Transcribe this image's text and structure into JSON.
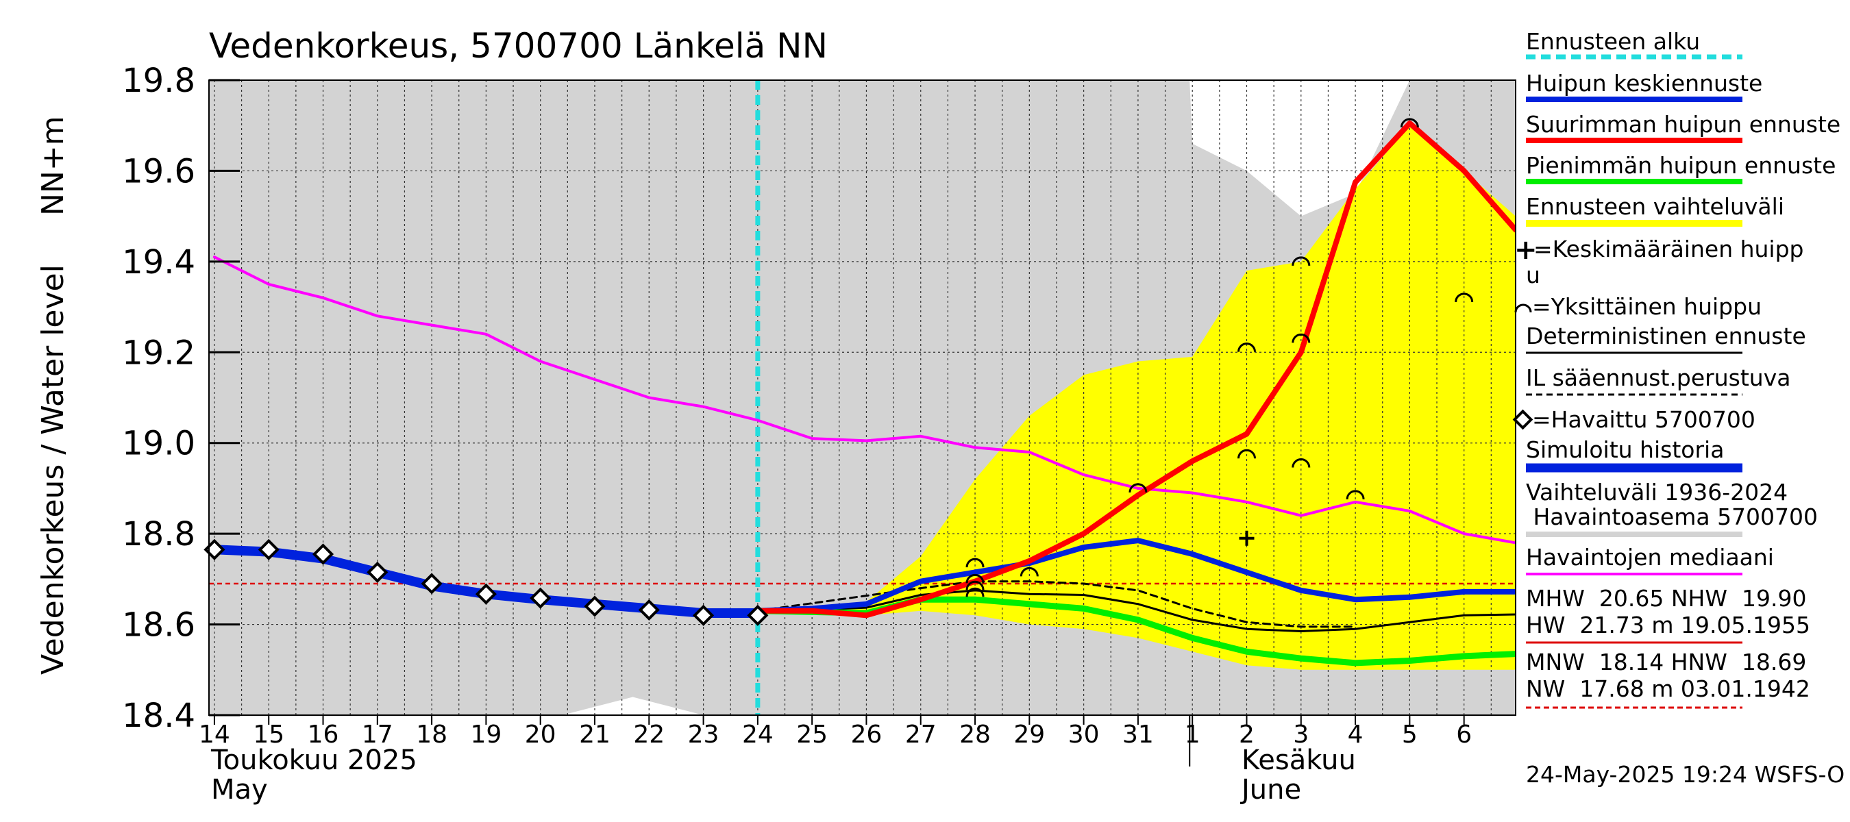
{
  "title": "Vedenkorkeus, 5700700 Länkelä NN",
  "ylabel_fi": "Vedenkorkeus / Water level",
  "ylabel_unit": "NN+m",
  "x_month_1": {
    "fi": "Toukokuu 2025",
    "en": "May"
  },
  "x_month_2": {
    "fi": "Kesäkuu",
    "en": "June"
  },
  "timestamp": "24-May-2025 19:24 WSFS-O",
  "colors": {
    "history_band": "#d3d3d3",
    "forecast_band": "#ffff00",
    "mean_peak": "#0022dd",
    "max_peak": "#ff0000",
    "min_peak": "#00ee00",
    "median": "#ff00ff",
    "forecast_start": "#22dddd",
    "ref_line": "#dd0000"
  },
  "legend": {
    "forecast_start": "Ennusteen alku",
    "mean_peak": "Huipun keskiennuste",
    "max_peak": "Suurimman huipun ennuste",
    "min_peak": "Pienimmän huipun ennuste",
    "range": "Ennusteen vaihteluväli",
    "avg_peak_1": "=Keskimääräinen huipp",
    "avg_peak_2": "u",
    "single_peak": "=Yksittäinen huippu",
    "deterministic": "Deterministinen ennuste",
    "il_forecast": "IL sääennust.perustuva",
    "observed": "=Havaittu 5700700",
    "simulated": "Simuloitu historia",
    "hist_range_1": "Vaihteluväli 1936-2024",
    "hist_range_2": " Havaintoasema 5700700",
    "median": "Havaintojen mediaani",
    "stats_1": "MHW  20.65 NHW  19.90",
    "stats_2": "HW  21.73 m 19.05.1955",
    "stats_3": "MNW  18.14 HNW  18.69",
    "stats_4": "NW  17.68 m 03.01.1942"
  },
  "chart_data": {
    "type": "line",
    "title": "Vedenkorkeus, 5700700 Länkelä NN",
    "ylabel": "Vedenkorkeus / Water level NN+m",
    "ylim": [
      18.4,
      19.8
    ],
    "yticks": [
      18.4,
      18.6,
      18.8,
      19.0,
      19.2,
      19.4,
      19.6,
      19.8
    ],
    "x_range": [
      13.9,
      37.95
    ],
    "day_ticks": [
      {
        "x": 14,
        "label": "14"
      },
      {
        "x": 15,
        "label": "15"
      },
      {
        "x": 16,
        "label": "16"
      },
      {
        "x": 17,
        "label": "17"
      },
      {
        "x": 18,
        "label": "18"
      },
      {
        "x": 19,
        "label": "19"
      },
      {
        "x": 20,
        "label": "20"
      },
      {
        "x": 21,
        "label": "21"
      },
      {
        "x": 22,
        "label": "22"
      },
      {
        "x": 23,
        "label": "23"
      },
      {
        "x": 24,
        "label": "24"
      },
      {
        "x": 25,
        "label": "25"
      },
      {
        "x": 26,
        "label": "26"
      },
      {
        "x": 27,
        "label": "27"
      },
      {
        "x": 28,
        "label": "28"
      },
      {
        "x": 29,
        "label": "29"
      },
      {
        "x": 30,
        "label": "30"
      },
      {
        "x": 31,
        "label": "31"
      },
      {
        "x": 32,
        "label": "1"
      },
      {
        "x": 33,
        "label": "2"
      },
      {
        "x": 34,
        "label": "3"
      },
      {
        "x": 35,
        "label": "4"
      },
      {
        "x": 36,
        "label": "5"
      },
      {
        "x": 37,
        "label": "6"
      }
    ],
    "month_boundary_x": 31.95,
    "forecast_start_x": 24,
    "ref_level": 18.69,
    "hist_upper": [
      [
        13.9,
        19.8
      ],
      [
        31.95,
        19.8
      ],
      [
        32,
        19.66
      ],
      [
        33,
        19.6
      ],
      [
        34,
        19.5
      ],
      [
        35,
        19.55
      ],
      [
        36,
        19.8
      ],
      [
        37.95,
        19.8
      ]
    ],
    "hist_lower": [
      [
        13.9,
        18.4
      ],
      [
        20.4,
        18.4
      ],
      [
        21.7,
        18.44
      ],
      [
        23,
        18.4
      ],
      [
        37.95,
        18.4
      ]
    ],
    "band_upper": [
      [
        24,
        18.63
      ],
      [
        26,
        18.65
      ],
      [
        27,
        18.75
      ],
      [
        28,
        18.92
      ],
      [
        29,
        19.06
      ],
      [
        30,
        19.15
      ],
      [
        31,
        19.18
      ],
      [
        32,
        19.19
      ],
      [
        33,
        19.38
      ],
      [
        34,
        19.4
      ],
      [
        35,
        19.56
      ],
      [
        36,
        19.7
      ],
      [
        37,
        19.6
      ],
      [
        37.95,
        19.5
      ]
    ],
    "band_lower": [
      [
        24,
        18.63
      ],
      [
        26,
        18.62
      ],
      [
        27,
        18.63
      ],
      [
        28,
        18.62
      ],
      [
        29,
        18.6
      ],
      [
        30,
        18.59
      ],
      [
        31,
        18.57
      ],
      [
        32,
        18.54
      ],
      [
        33,
        18.51
      ],
      [
        34,
        18.5
      ],
      [
        35,
        18.5
      ],
      [
        36,
        18.5
      ],
      [
        37,
        18.5
      ],
      [
        37.95,
        18.5
      ]
    ],
    "series": [
      {
        "name": "Havaintojen mediaani",
        "key": "median",
        "width": 4,
        "points": [
          [
            14,
            19.41
          ],
          [
            15,
            19.35
          ],
          [
            16,
            19.32
          ],
          [
            17,
            19.28
          ],
          [
            18,
            19.26
          ],
          [
            19,
            19.24
          ],
          [
            20,
            19.18
          ],
          [
            21,
            19.14
          ],
          [
            22,
            19.1
          ],
          [
            23,
            19.08
          ],
          [
            24,
            19.05
          ],
          [
            25,
            19.01
          ],
          [
            26,
            19.005
          ],
          [
            27,
            19.015
          ],
          [
            28,
            18.99
          ],
          [
            29,
            18.98
          ],
          [
            30,
            18.93
          ],
          [
            31,
            18.9
          ],
          [
            32,
            18.89
          ],
          [
            33,
            18.87
          ],
          [
            34,
            18.84
          ],
          [
            35,
            18.87
          ],
          [
            36,
            18.85
          ],
          [
            37,
            18.8
          ],
          [
            37.95,
            18.78
          ]
        ]
      },
      {
        "name": "Simuloitu historia",
        "key": "mean_peak",
        "width": 14,
        "points": [
          [
            14,
            18.765
          ],
          [
            15,
            18.76
          ],
          [
            16,
            18.745
          ],
          [
            17,
            18.715
          ],
          [
            18,
            18.685
          ],
          [
            19,
            18.667
          ],
          [
            20,
            18.655
          ],
          [
            21,
            18.645
          ],
          [
            22,
            18.635
          ],
          [
            23,
            18.625
          ],
          [
            24,
            18.625
          ]
        ]
      },
      {
        "name": "Deterministinen ennuste",
        "key": "black",
        "width": 3,
        "points": [
          [
            24,
            18.63
          ],
          [
            25,
            18.632
          ],
          [
            26,
            18.637
          ],
          [
            27,
            18.665
          ],
          [
            28,
            18.675
          ],
          [
            29,
            18.667
          ],
          [
            30,
            18.665
          ],
          [
            31,
            18.645
          ],
          [
            32,
            18.61
          ],
          [
            33,
            18.59
          ],
          [
            34,
            18.585
          ],
          [
            35,
            18.59
          ],
          [
            36,
            18.605
          ],
          [
            37,
            18.62
          ],
          [
            37.95,
            18.622
          ]
        ]
      },
      {
        "name": "IL sääennust.perustuva",
        "key": "black",
        "width": 3,
        "dash": "10,7",
        "points": [
          [
            24,
            18.63
          ],
          [
            27,
            18.68
          ],
          [
            28,
            18.695
          ],
          [
            29,
            18.695
          ],
          [
            30,
            18.69
          ],
          [
            31,
            18.675
          ],
          [
            32,
            18.635
          ],
          [
            33,
            18.605
          ],
          [
            34,
            18.595
          ],
          [
            35,
            18.595
          ]
        ]
      },
      {
        "name": "Pienimmän huipun ennuste",
        "key": "min_peak",
        "width": 9,
        "points": [
          [
            24,
            18.63
          ],
          [
            26,
            18.625
          ],
          [
            27,
            18.655
          ],
          [
            28,
            18.655
          ],
          [
            29,
            18.645
          ],
          [
            30,
            18.635
          ],
          [
            31,
            18.61
          ],
          [
            32,
            18.57
          ],
          [
            33,
            18.54
          ],
          [
            34,
            18.525
          ],
          [
            35,
            18.515
          ],
          [
            36,
            18.52
          ],
          [
            37,
            18.53
          ],
          [
            37.95,
            18.535
          ]
        ]
      },
      {
        "name": "Huipun keskiennuste",
        "key": "mean_peak",
        "width": 8,
        "points": [
          [
            24,
            18.63
          ],
          [
            25,
            18.635
          ],
          [
            26,
            18.645
          ],
          [
            27,
            18.695
          ],
          [
            28,
            18.715
          ],
          [
            29,
            18.735
          ],
          [
            30,
            18.77
          ],
          [
            31,
            18.785
          ],
          [
            32,
            18.755
          ],
          [
            33,
            18.715
          ],
          [
            34,
            18.675
          ],
          [
            35,
            18.655
          ],
          [
            36,
            18.66
          ],
          [
            37,
            18.672
          ],
          [
            37.95,
            18.672
          ]
        ]
      },
      {
        "name": "Suurimman huipun ennuste",
        "key": "max_peak",
        "width": 8,
        "points": [
          [
            24,
            18.63
          ],
          [
            25,
            18.63
          ],
          [
            26,
            18.62
          ],
          [
            27,
            18.655
          ],
          [
            28,
            18.695
          ],
          [
            29,
            18.74
          ],
          [
            30,
            18.8
          ],
          [
            31,
            18.885
          ],
          [
            32,
            18.96
          ],
          [
            33,
            19.02
          ],
          [
            34,
            19.2
          ],
          [
            35,
            19.575
          ],
          [
            36,
            19.705
          ],
          [
            37,
            19.6
          ],
          [
            37.95,
            19.47
          ]
        ]
      }
    ],
    "observed": [
      [
        14,
        18.765
      ],
      [
        15,
        18.765
      ],
      [
        16,
        18.755
      ],
      [
        17,
        18.715
      ],
      [
        18,
        18.69
      ],
      [
        19,
        18.667
      ],
      [
        20,
        18.658
      ],
      [
        21,
        18.64
      ],
      [
        22,
        18.632
      ],
      [
        23,
        18.62
      ],
      [
        24,
        18.62
      ]
    ],
    "single_peaks": [
      [
        28,
        18.735
      ],
      [
        28,
        18.7
      ],
      [
        28,
        18.685
      ],
      [
        28,
        18.67
      ],
      [
        29,
        18.715
      ],
      [
        31,
        18.9
      ],
      [
        33,
        19.21
      ],
      [
        33,
        18.975
      ],
      [
        34,
        19.4
      ],
      [
        34,
        19.23
      ],
      [
        34,
        18.955
      ],
      [
        35,
        18.885
      ],
      [
        36,
        19.705
      ],
      [
        37,
        19.32
      ]
    ],
    "avg_peak": [
      [
        33,
        18.79
      ]
    ]
  }
}
